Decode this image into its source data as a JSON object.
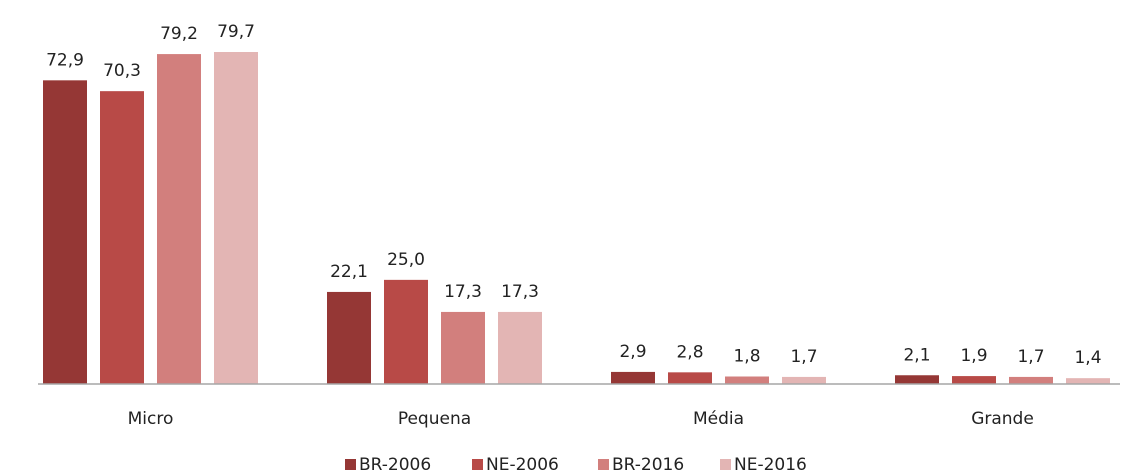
{
  "chart_data": {
    "type": "bar",
    "categories": [
      "Micro",
      "Pequena",
      "Média",
      "Grande"
    ],
    "series": [
      {
        "name": "BR-2006",
        "values": [
          72.9,
          22.1,
          2.9,
          2.1
        ],
        "labels": [
          "72,9",
          "22,1",
          "2,9",
          "2,1"
        ],
        "color": "#953735"
      },
      {
        "name": "NE-2006",
        "values": [
          70.3,
          25.0,
          2.8,
          1.9
        ],
        "labels": [
          "70,3",
          "25,0",
          "2,8",
          "1,9"
        ],
        "color": "#b84a47"
      },
      {
        "name": "BR-2016",
        "values": [
          79.2,
          17.3,
          1.8,
          1.7
        ],
        "labels": [
          "79,2",
          "17,3",
          "1,8",
          "1,7"
        ],
        "color": "#d27f7d"
      },
      {
        "name": "NE-2016",
        "values": [
          79.7,
          17.3,
          1.7,
          1.4
        ],
        "labels": [
          "79,7",
          "17,3",
          "1,7",
          "1,4"
        ],
        "color": "#e3b5b4"
      }
    ],
    "ylim": [
      0,
      79.7
    ],
    "grid": false,
    "legend_position": "bottom",
    "axis_color": "#a6a6a6"
  }
}
